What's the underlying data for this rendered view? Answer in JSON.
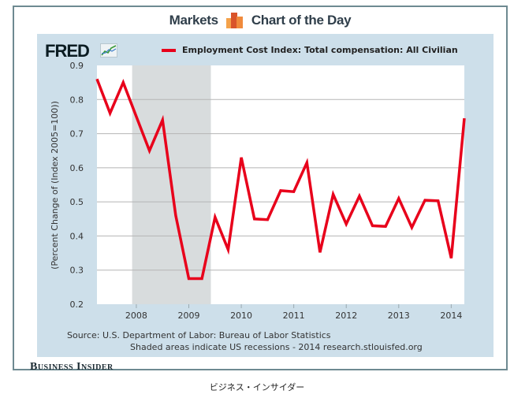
{
  "header": {
    "left_title": "Markets",
    "right_title": "Chart of the Day",
    "logo_icon": "bar-chart-icon"
  },
  "branding": {
    "fred_logo": "FRED",
    "fred_icon": "line-graph-icon",
    "publisher": "Business Insider",
    "caption": "ビジネス・インサイダー"
  },
  "footer": {
    "source": "Source: U.S. Department of Labor: Bureau of Labor Statistics",
    "shade_note": "Shaded areas indicate US recessions - 2014 research.stlouisfed.org"
  },
  "colors": {
    "series": "#e8001b",
    "panel": "#cddfea",
    "recession": "#d8dcdd",
    "grid": "#b5b5b5"
  },
  "chart_data": {
    "type": "line",
    "title": "",
    "xlabel": "",
    "ylabel": "(Percent Change of (Index 2005=100))",
    "legend": "Employment Cost Index: Total compensation: All Civilian",
    "legend_position": "top",
    "grid": true,
    "ylim": [
      0.2,
      0.9
    ],
    "yticks": [
      "0.2",
      "0.3",
      "0.4",
      "0.5",
      "0.6",
      "0.7",
      "0.8",
      "0.9"
    ],
    "xlim": [
      2007.25,
      2014.25
    ],
    "xticks": [
      "2008",
      "2009",
      "2010",
      "2011",
      "2012",
      "2013",
      "2014"
    ],
    "recession": {
      "start": 2007.92,
      "end": 2009.42
    },
    "series": [
      {
        "name": "Employment Cost Index: Total compensation: All Civilian",
        "x": [
          2007.25,
          2007.5,
          2007.75,
          2008.0,
          2008.25,
          2008.5,
          2008.75,
          2009.0,
          2009.25,
          2009.5,
          2009.75,
          2010.0,
          2010.25,
          2010.5,
          2010.75,
          2011.0,
          2011.25,
          2011.5,
          2011.75,
          2012.0,
          2012.25,
          2012.5,
          2012.75,
          2013.0,
          2013.25,
          2013.5,
          2013.75,
          2014.0,
          2014.25
        ],
        "values": [
          0.86,
          0.76,
          0.85,
          0.75,
          0.65,
          0.74,
          0.46,
          0.275,
          0.275,
          0.455,
          0.36,
          0.63,
          0.45,
          0.448,
          0.533,
          0.53,
          0.615,
          0.352,
          0.522,
          0.435,
          0.517,
          0.43,
          0.428,
          0.51,
          0.425,
          0.505,
          0.503,
          0.335,
          0.745
        ]
      }
    ]
  }
}
